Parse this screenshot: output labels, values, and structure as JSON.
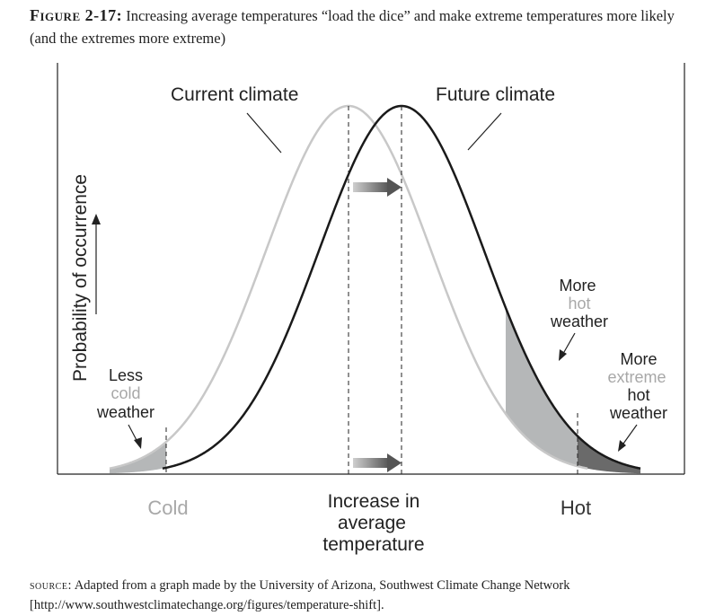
{
  "caption": {
    "figure_label": "Figure 2-17:",
    "text": "Increasing average temperatures “load the dice” and make extreme temperatures more likely (and the extremes more extreme)"
  },
  "labels": {
    "current_climate": "Current climate",
    "future_climate": "Future climate",
    "y_axis": "Probability of occurrence",
    "x_cold": "Cold",
    "x_hot": "Hot",
    "x_center_line1": "Increase in",
    "x_center_line2": "average",
    "x_center_line3": "temperature",
    "less_cold": [
      "Less",
      "cold",
      "weather"
    ],
    "more_hot": [
      "More",
      "hot",
      "weather"
    ],
    "more_extreme_hot": [
      "More",
      "extreme",
      "hot",
      "weather"
    ]
  },
  "source": {
    "label": "source:",
    "text": "Adapted from a graph made by the University of Arizona, Southwest Climate Change Network [http://www.southwestclimatechange.org/figures/temperature-shift]."
  },
  "colors": {
    "current_curve": "#c8c8c8",
    "future_curve": "#1a1a1a",
    "light_fill": "#b5b7b8",
    "dark_fill": "#6a6a6a",
    "muted_text": "#a8a8a8",
    "arrow": "#707070"
  }
}
